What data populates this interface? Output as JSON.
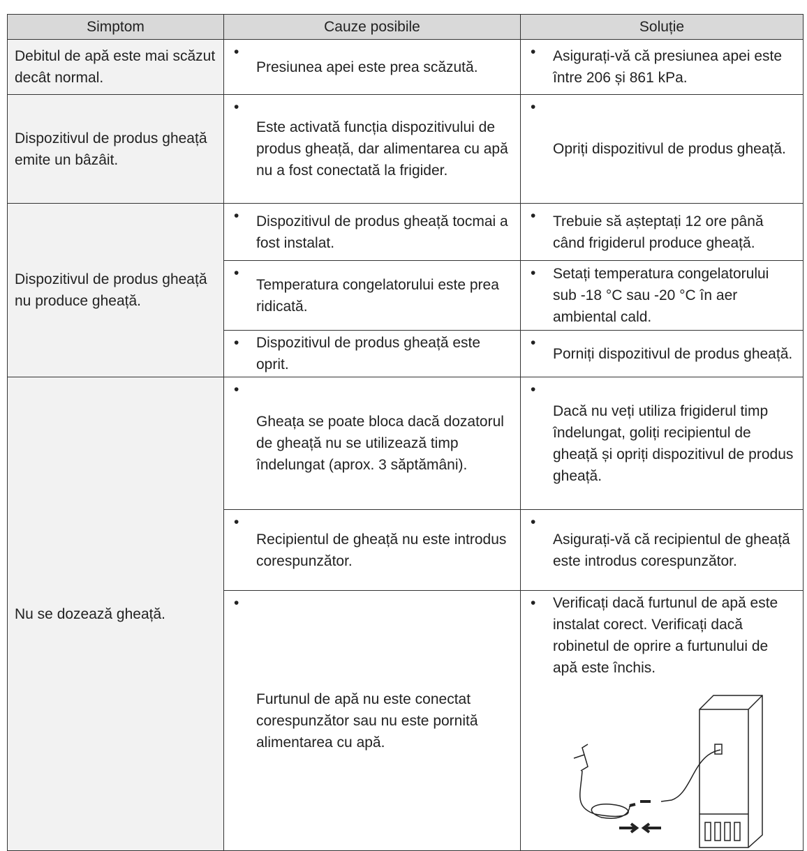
{
  "table": {
    "header": [
      "Simptom",
      "Cauze posibile",
      "Soluție"
    ],
    "rows": [
      {
        "symptom": "Debitul de apă este mai scăzut decât normal.",
        "causes": [
          {
            "cause": "Presiunea apei este prea scăzută.",
            "solution": "Asigurați-vă că presiunea apei este între 206 și 861 kPa."
          }
        ]
      },
      {
        "symptom": "Dispozitivul de produs gheață emite un bâzâit.",
        "causes": [
          {
            "cause": "Este activată funcția dispozitivului de produs gheață, dar alimentarea cu apă nu a fost conectată la frigider.",
            "solution": "Opriți dispozitivul de produs gheață."
          }
        ]
      },
      {
        "symptom": "Dispozitivul de produs gheață nu produce gheață.",
        "causes": [
          {
            "cause": "Dispozitivul de produs gheață tocmai a fost instalat.",
            "solution": "Trebuie să așteptați 12 ore până când frigiderul produce gheață."
          },
          {
            "cause": "Temperatura congelatorului este prea ridicată.",
            "solution": "Setați temperatura congelatorului sub -18 °C sau -20 °C în aer ambiental cald."
          },
          {
            "cause": "Dispozitivul de produs gheață este oprit.",
            "solution": "Porniți dispozitivul de produs gheață."
          }
        ]
      },
      {
        "symptom": "Nu se dozează gheață.",
        "causes": [
          {
            "cause": "Gheața se poate bloca dacă dozatorul de gheață nu se utilizează timp îndelungat (aprox. 3 săptămâni).",
            "solution": "Dacă nu veți utiliza frigiderul timp îndelungat, goliți recipientul de gheață și opriți dispozitivul de produs gheață."
          },
          {
            "cause": "Recipientul de gheață nu este introdus corespunzător.",
            "solution": "Asigurați-vă că recipientul de gheață este introdus corespunzător."
          },
          {
            "cause": "Furtunul de apă nu este conectat corespunzător sau nu este pornită alimentarea cu apă.",
            "solution": "Verificați dacă furtunul de apă este instalat corect. Verificați dacă robinetul de oprire a furtunului de apă este închis."
          }
        ]
      }
    ]
  }
}
